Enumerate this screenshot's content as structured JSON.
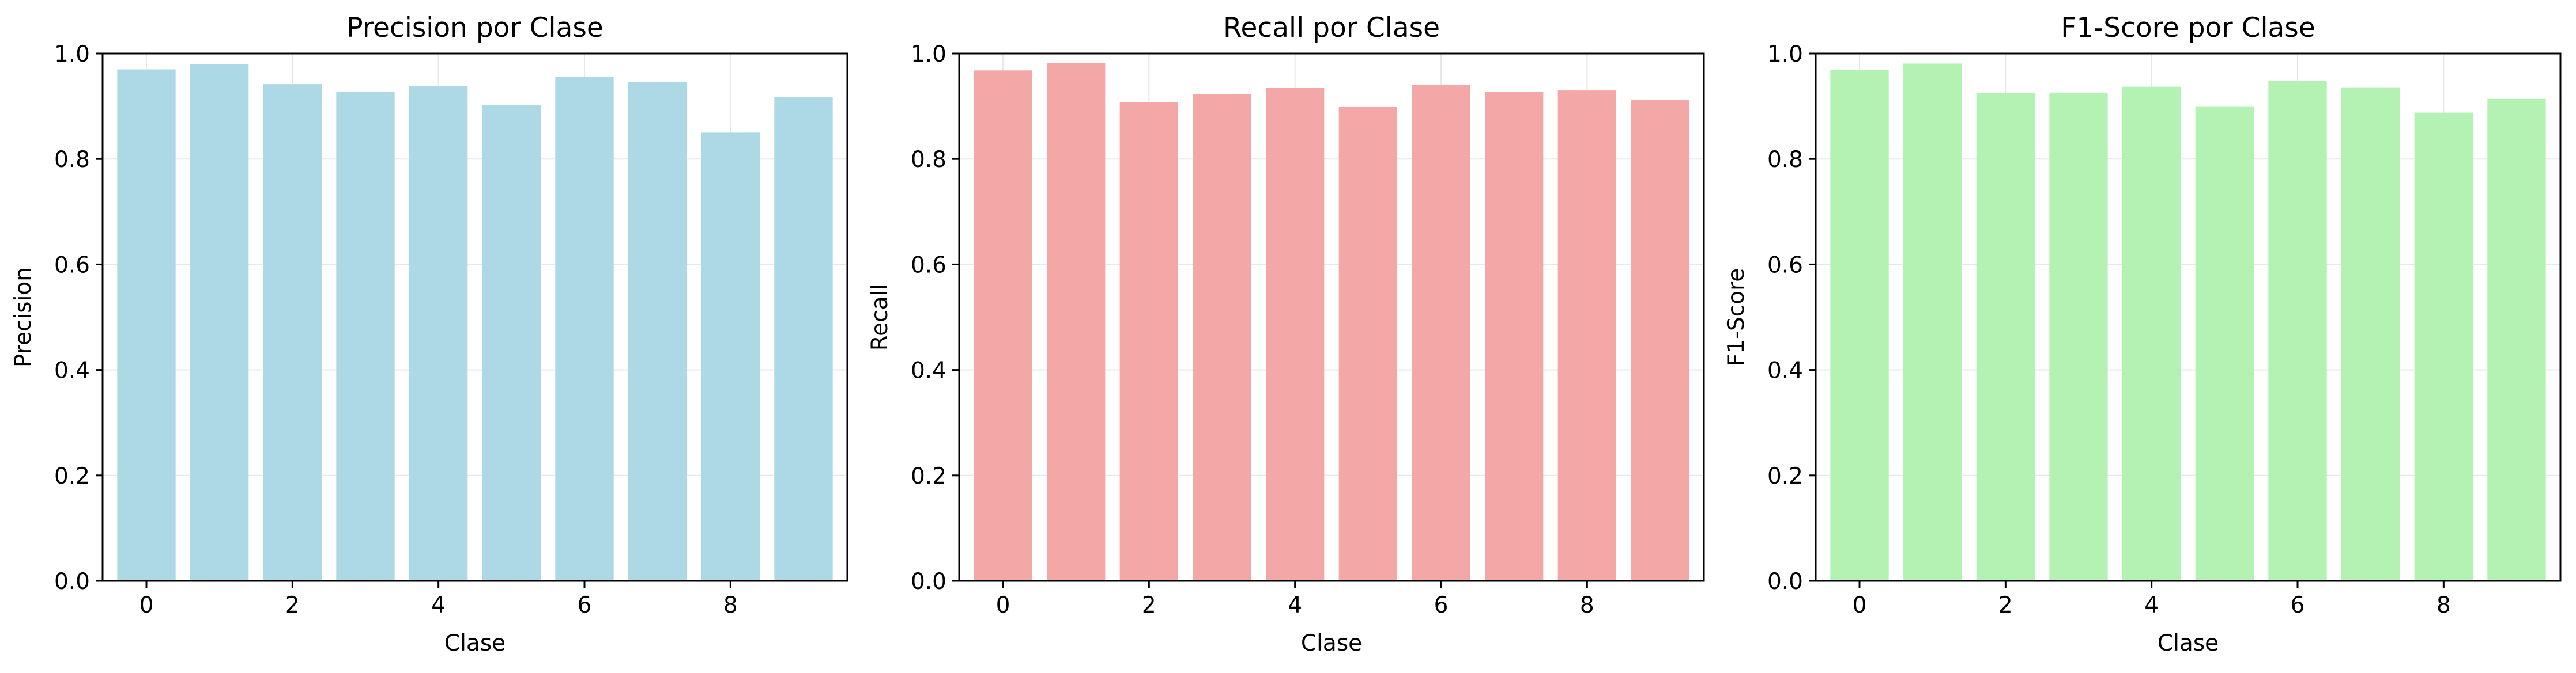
{
  "chart_data": [
    {
      "type": "bar",
      "title": "Precision por Clase",
      "xlabel": "Clase",
      "ylabel": "Precision",
      "categories": [
        0,
        1,
        2,
        3,
        4,
        5,
        6,
        7,
        8,
        9
      ],
      "values": [
        0.97,
        0.98,
        0.942,
        0.928,
        0.938,
        0.902,
        0.956,
        0.946,
        0.85,
        0.917
      ],
      "xticks": [
        0,
        2,
        4,
        6,
        8
      ],
      "xlim": [
        -0.6,
        9.6
      ],
      "ylim": [
        0,
        1.0
      ],
      "yticks": [
        0.0,
        0.2,
        0.4,
        0.6,
        0.8,
        1.0
      ],
      "grid": true,
      "color": "#add8e6"
    },
    {
      "type": "bar",
      "title": "Recall por Clase",
      "xlabel": "Clase",
      "ylabel": "Recall",
      "categories": [
        0,
        1,
        2,
        3,
        4,
        5,
        6,
        7,
        8,
        9
      ],
      "values": [
        0.968,
        0.982,
        0.908,
        0.923,
        0.935,
        0.899,
        0.94,
        0.927,
        0.93,
        0.912
      ],
      "xticks": [
        0,
        2,
        4,
        6,
        8
      ],
      "xlim": [
        -0.6,
        9.6
      ],
      "ylim": [
        0,
        1.0
      ],
      "yticks": [
        0.0,
        0.2,
        0.4,
        0.6,
        0.8,
        1.0
      ],
      "grid": true,
      "color": "#f4a7a7"
    },
    {
      "type": "bar",
      "title": "F1-Score por Clase",
      "xlabel": "Clase",
      "ylabel": "F1-Score",
      "categories": [
        0,
        1,
        2,
        3,
        4,
        5,
        6,
        7,
        8,
        9
      ],
      "values": [
        0.969,
        0.981,
        0.925,
        0.926,
        0.937,
        0.9,
        0.948,
        0.936,
        0.888,
        0.914
      ],
      "xticks": [
        0,
        2,
        4,
        6,
        8
      ],
      "xlim": [
        -0.6,
        9.6
      ],
      "ylim": [
        0,
        1.0
      ],
      "yticks": [
        0.0,
        0.2,
        0.4,
        0.6,
        0.8,
        1.0
      ],
      "grid": true,
      "color": "#b3f2b3"
    }
  ]
}
